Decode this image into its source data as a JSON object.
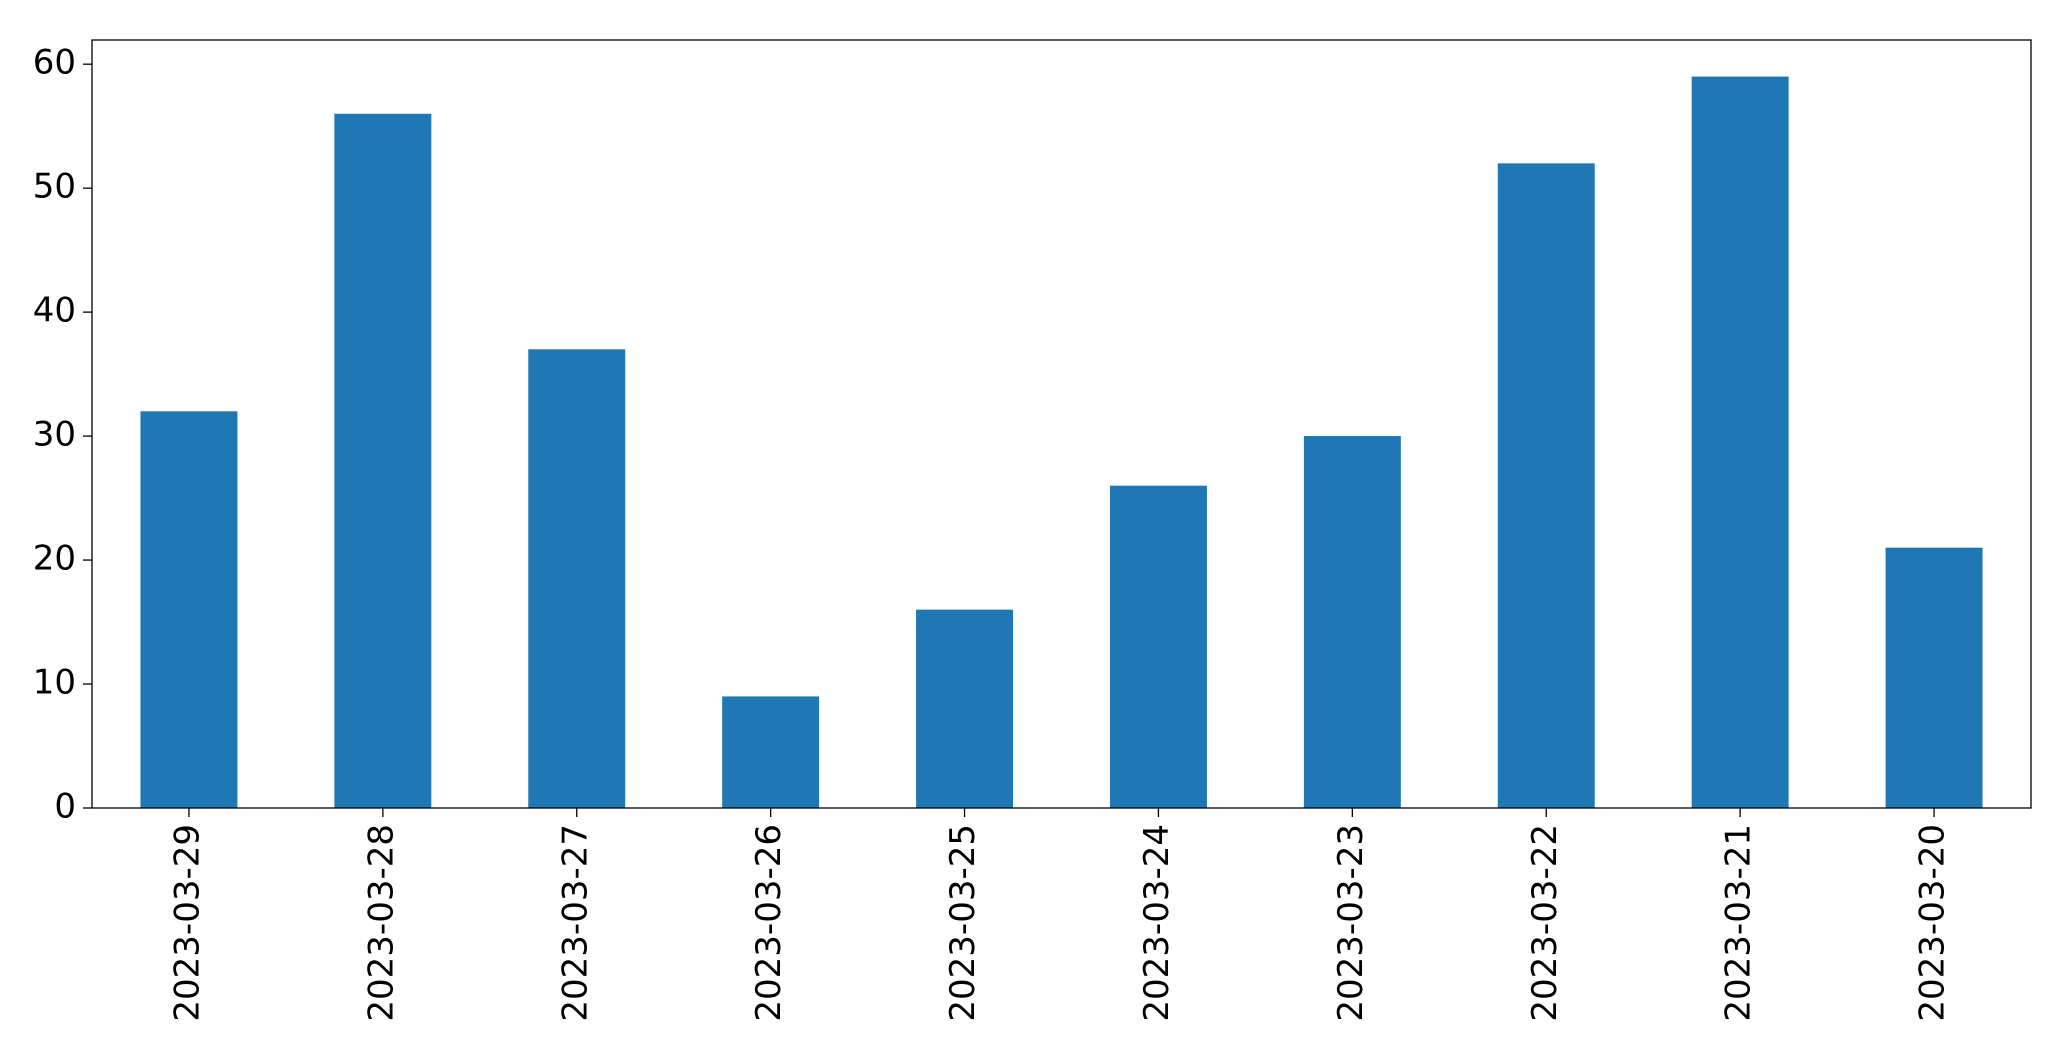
{
  "chart_data": {
    "type": "bar",
    "categories": [
      "2023-03-29",
      "2023-03-28",
      "2023-03-27",
      "2023-03-26",
      "2023-03-25",
      "2023-03-24",
      "2023-03-23",
      "2023-03-22",
      "2023-03-21",
      "2023-03-20"
    ],
    "values": [
      32,
      56,
      37,
      9,
      16,
      26,
      30,
      52,
      59,
      21
    ],
    "color": "#1f77b4",
    "ylim": [
      0,
      61.95
    ],
    "yticks": [
      0,
      10,
      20,
      30,
      40,
      50,
      60
    ],
    "grid": false
  }
}
